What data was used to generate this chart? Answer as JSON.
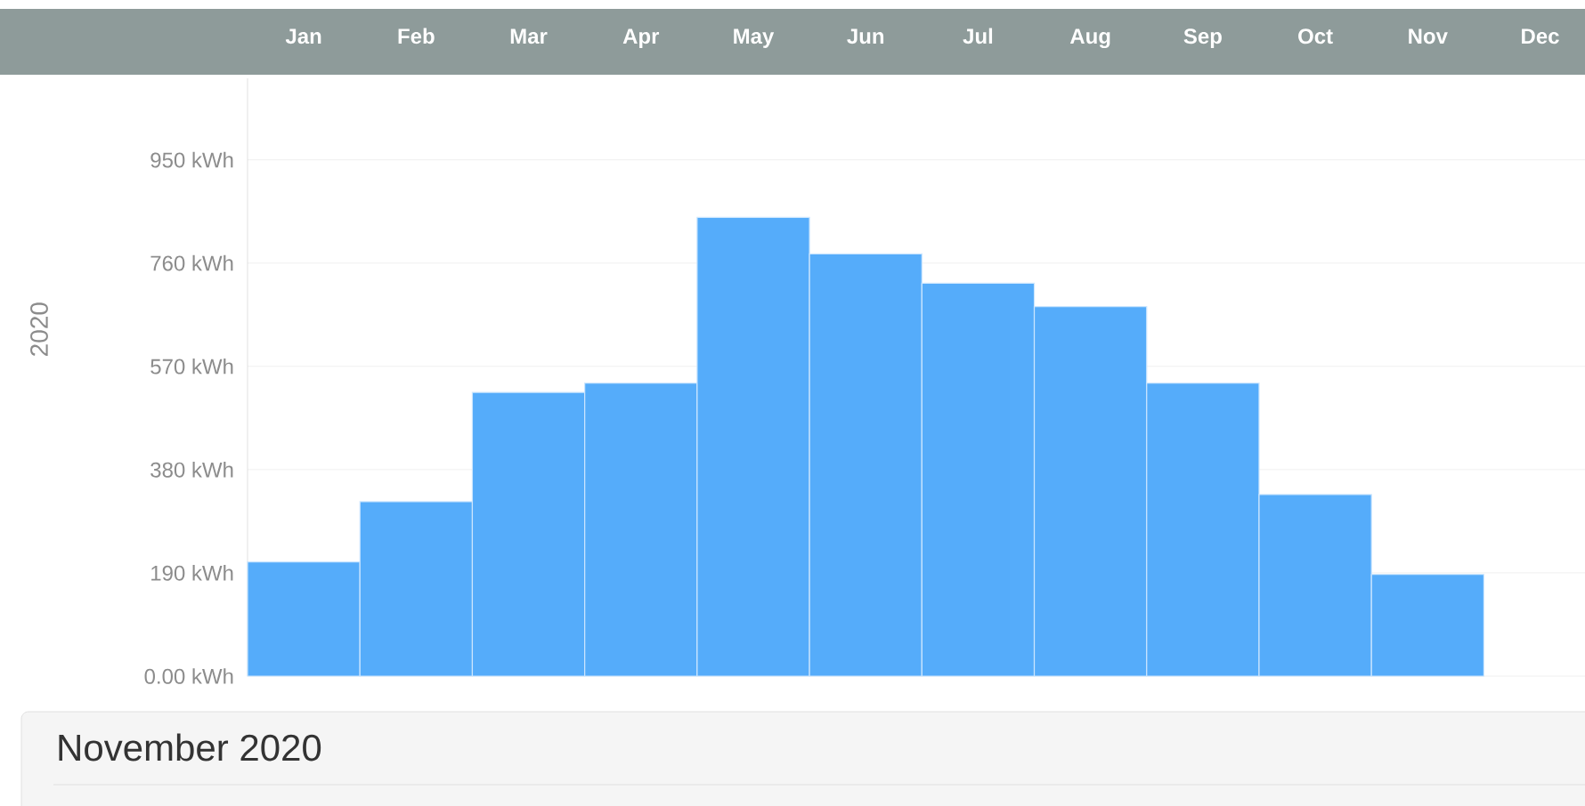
{
  "chart_data": {
    "type": "bar",
    "ylabel": "2020",
    "categories": [
      "Jan",
      "Feb",
      "Mar",
      "Apr",
      "May",
      "Jun",
      "Jul",
      "Aug",
      "Sep",
      "Oct",
      "Nov",
      "Dec"
    ],
    "values": [
      210,
      321,
      522,
      539,
      844,
      777,
      723,
      680,
      539,
      334,
      187,
      null
    ],
    "color": "#55acfa",
    "ylim": [
      0,
      1100
    ],
    "yticks": [
      {
        "value": 0,
        "label": "0.00 kWh"
      },
      {
        "value": 190,
        "label": "190 kWh"
      },
      {
        "value": 380,
        "label": "380 kWh"
      },
      {
        "value": 570,
        "label": "570 kWh"
      },
      {
        "value": 760,
        "label": "760 kWh"
      },
      {
        "value": 950,
        "label": "950 kWh"
      }
    ],
    "grid": "y",
    "annotations": [
      "November 2020"
    ]
  }
}
